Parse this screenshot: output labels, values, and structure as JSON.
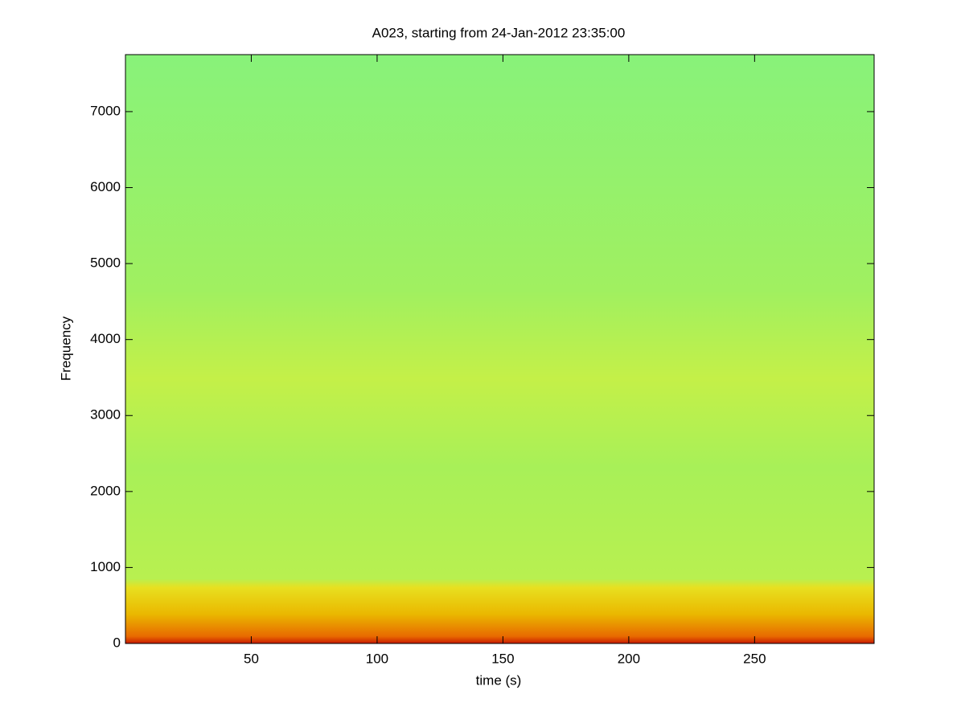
{
  "chart_data": {
    "type": "spectrogram",
    "title": "A023, starting from 24-Jan-2012 23:35:00",
    "x_label": "time (s)",
    "y_label": "Frequency",
    "xlim": [
      0,
      297.5
    ],
    "xticks": [
      50,
      100,
      150,
      200,
      250
    ],
    "ylim": [
      0,
      7750
    ],
    "yticks": [
      0,
      1000,
      2000,
      3000,
      4000,
      5000,
      6000,
      7000
    ]
  }
}
